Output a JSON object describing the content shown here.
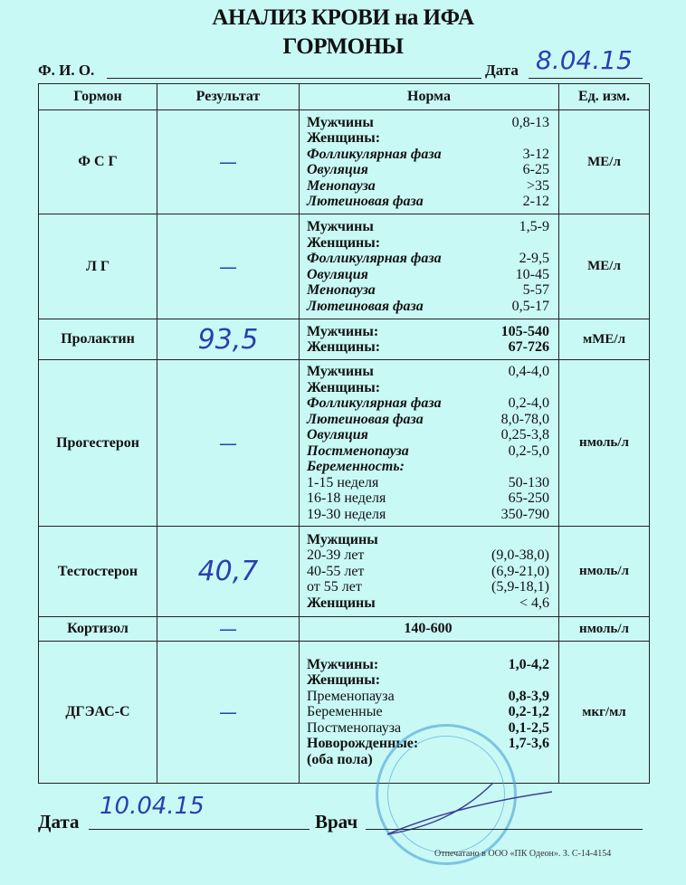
{
  "header": {
    "title": "АНАЛИЗ КРОВИ на ИФА",
    "subtitle": "ГОРМОНЫ",
    "fio_label": "Ф. И. О.",
    "date_label": "Дата",
    "date_value": "8.04.15"
  },
  "table": {
    "columns": [
      "Гормон",
      "Результат",
      "Норма",
      "Ед. изм."
    ],
    "rows": [
      {
        "hormone": "Ф С Г",
        "result": "—",
        "unit": "МЕ/л",
        "norm": [
          {
            "label": "Мужчины",
            "value": "0,8-13",
            "style": "b"
          },
          {
            "label": "Женщины:",
            "value": "",
            "style": "b"
          },
          {
            "label": "Фолликулярная фаза",
            "value": "3-12",
            "style": "bi"
          },
          {
            "label": "Овуляция",
            "value": "6-25",
            "style": "bi"
          },
          {
            "label": "Менопауза",
            "value": ">35",
            "style": "bi"
          },
          {
            "label": "Лютеиновая фаза",
            "value": "2-12",
            "style": "bi"
          }
        ]
      },
      {
        "hormone": "Л Г",
        "result": "—",
        "unit": "МЕ/л",
        "norm": [
          {
            "label": "Мужчины",
            "value": "1,5-9",
            "style": "b"
          },
          {
            "label": "Женщины:",
            "value": "",
            "style": "b"
          },
          {
            "label": "Фолликулярная фаза",
            "value": "2-9,5",
            "style": "bi"
          },
          {
            "label": "Овуляция",
            "value": "10-45",
            "style": "bi"
          },
          {
            "label": "Менопауза",
            "value": "5-57",
            "style": "bi"
          },
          {
            "label": "Лютеиновая фаза",
            "value": "0,5-17",
            "style": "bi"
          }
        ]
      },
      {
        "hormone": "Пролактин",
        "result": "93,5",
        "unit": "мМЕ/л",
        "norm": [
          {
            "label": "Мужчины:",
            "value": "105-540",
            "style": "b",
            "vb": true
          },
          {
            "label": "Женщины:",
            "value": "67-726",
            "style": "b",
            "vb": true
          }
        ]
      },
      {
        "hormone": "Прогестерон",
        "result": "—",
        "unit": "нмоль/л",
        "norm": [
          {
            "label": "Мужчины",
            "value": "0,4-4,0",
            "style": "b"
          },
          {
            "label": "Женщины:",
            "value": "",
            "style": "b"
          },
          {
            "label": "Фолликулярная фаза",
            "value": "0,2-4,0",
            "style": "bi"
          },
          {
            "label": "Лютеиновая фаза",
            "value": "8,0-78,0",
            "style": "bi"
          },
          {
            "label": "Овуляция",
            "value": "0,25-3,8",
            "style": "bi"
          },
          {
            "label": "Постменопауза",
            "value": "0,2-5,0",
            "style": "bi"
          },
          {
            "label": "Беременность:",
            "value": "",
            "style": "bi"
          },
          {
            "label": "1-15 неделя",
            "value": "50-130",
            "style": "r"
          },
          {
            "label": "16-18 неделя",
            "value": "65-250",
            "style": "r"
          },
          {
            "label": "19-30 неделя",
            "value": "350-790",
            "style": "r"
          }
        ]
      },
      {
        "hormone": "Тестостерон",
        "result": "40,7",
        "unit": "нмоль/л",
        "norm": [
          {
            "label": "Мужщины",
            "value": "",
            "style": "b"
          },
          {
            "label": "20-39 лет",
            "value": "(9,0-38,0)",
            "style": "r"
          },
          {
            "label": "40-55 лет",
            "value": "(6,9-21,0)",
            "style": "r"
          },
          {
            "label": "от 55 лет",
            "value": "(5,9-18,1)",
            "style": "r"
          },
          {
            "label": "Женщины",
            "value": "< 4,6",
            "style": "b"
          }
        ]
      },
      {
        "hormone": "Кортизол",
        "result": "—",
        "unit": "нмоль/л",
        "norm_center": "140-600",
        "norm": []
      },
      {
        "hormone": "ДГЭАС-С",
        "result": "—",
        "unit": "мкг/мл",
        "norm": [
          {
            "label": "Мужчины:",
            "value": "1,0-4,2",
            "style": "b",
            "vb": true
          },
          {
            "label": "Женщины:",
            "value": "",
            "style": "b"
          },
          {
            "label": "Пременопауза",
            "value": "0,8-3,9",
            "style": "r",
            "vb": true
          },
          {
            "label": "Беременные",
            "value": "0,2-1,2",
            "style": "r",
            "vb": true
          },
          {
            "label": "Постменопауза",
            "value": "0,1-2,5",
            "style": "r",
            "vb": true
          },
          {
            "label": "Новорожденные:",
            "value": "1,7-3,6",
            "style": "b",
            "vb": true
          },
          {
            "label": "(оба пола)",
            "value": "",
            "style": "b"
          }
        ]
      }
    ]
  },
  "footer": {
    "date_label": "Дата",
    "date_value": "10.04.15",
    "doctor_label": "Врач",
    "printed": "Отпечатано в ООО «ПК Одеон». З. С-14-4154"
  },
  "colors": {
    "paper": "#c9f9f5",
    "ink": "#2a3fb0",
    "stamp": "#4aa0d8"
  }
}
